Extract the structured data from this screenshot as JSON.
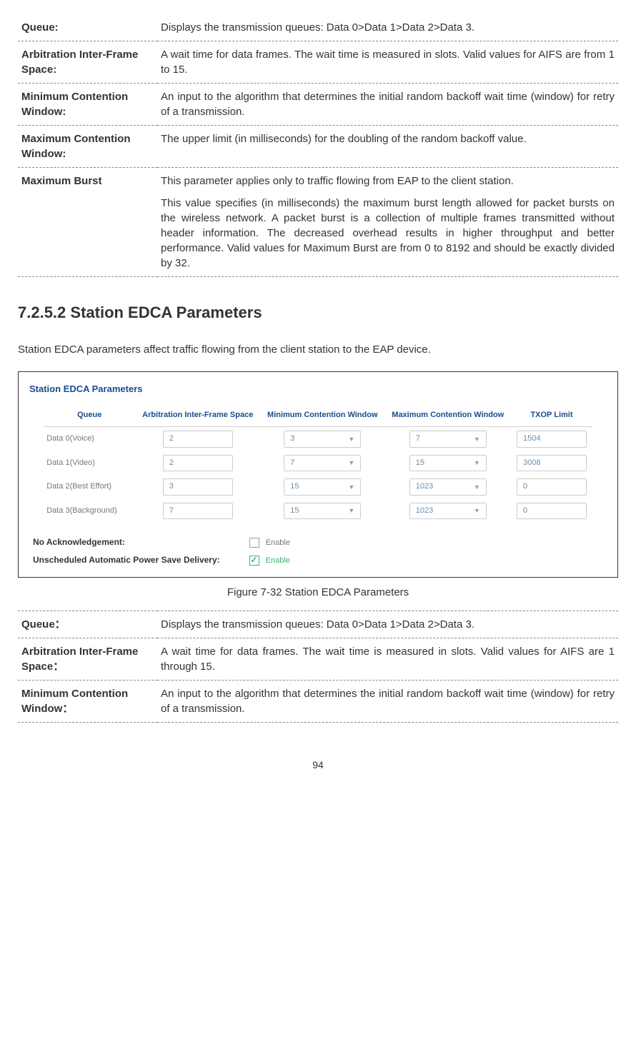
{
  "definitions_a": [
    {
      "term": "Queue:",
      "desc": [
        "Displays the transmission queues: Data 0>Data 1>Data 2>Data 3."
      ]
    },
    {
      "term": "Arbitration Inter-Frame Space:",
      "desc": [
        "A wait time for data frames. The wait time is measured in slots. Valid values for AIFS are from 1 to 15."
      ]
    },
    {
      "term": "Minimum Contention Window:",
      "desc": [
        "An input to the algorithm that determines the initial random backoff wait time (window) for retry of a transmission."
      ]
    },
    {
      "term": "Maximum Contention Window:",
      "desc": [
        "The upper limit (in milliseconds) for the doubling of the random backoff value."
      ]
    },
    {
      "term": "Maximum Burst",
      "desc": [
        "This parameter applies only to traffic flowing from EAP to the client station.",
        "This value specifies (in milliseconds) the maximum burst length allowed for packet bursts on the wireless network. A packet burst is a collection of multiple frames transmitted without header information. The decreased overhead results in higher throughput and better performance. Valid values for Maximum Burst are from 0 to 8192 and should be exactly divided by 32."
      ]
    }
  ],
  "section_heading": "7.2.5.2  Station EDCA Parameters",
  "intro_text": "Station EDCA parameters affect traffic flowing from the client station to the EAP device.",
  "panel": {
    "title": "Station EDCA Parameters",
    "columns": [
      "Queue",
      "Arbitration Inter-Frame Space",
      "Minimum Contention Window",
      "Maximum Contention Window",
      "TXOP Limit"
    ],
    "rows": [
      {
        "label": "Data 0(Voice)",
        "aifs": "2",
        "min": "3",
        "max": "7",
        "txop": "1504"
      },
      {
        "label": "Data 1(Video)",
        "aifs": "2",
        "min": "7",
        "max": "15",
        "txop": "3008"
      },
      {
        "label": "Data 2(Best Effort)",
        "aifs": "3",
        "min": "15",
        "max": "1023",
        "txop": "0"
      },
      {
        "label": "Data 3(Background)",
        "aifs": "7",
        "min": "15",
        "max": "1023",
        "txop": "0"
      }
    ],
    "no_ack": {
      "label": "No Acknowledgement:",
      "text": "Enable",
      "checked": false
    },
    "uapsd": {
      "label": "Unscheduled Automatic Power Save Delivery:",
      "text": "Enable",
      "checked": true
    }
  },
  "figure_caption": "Figure 7-32 Station EDCA Parameters",
  "definitions_b": [
    {
      "term": "Queue：",
      "desc": [
        "Displays the transmission queues: Data 0>Data 1>Data 2>Data 3."
      ]
    },
    {
      "term": "Arbitration Inter-Frame Space：",
      "desc": [
        "A wait time for data frames. The wait time is measured in slots. Valid values for AIFS are 1 through 15."
      ]
    },
    {
      "term": "Minimum Contention Window：",
      "desc": [
        "An input to the algorithm that determines the initial random backoff wait time (window) for retry of a transmission."
      ]
    }
  ],
  "page_number": "94"
}
